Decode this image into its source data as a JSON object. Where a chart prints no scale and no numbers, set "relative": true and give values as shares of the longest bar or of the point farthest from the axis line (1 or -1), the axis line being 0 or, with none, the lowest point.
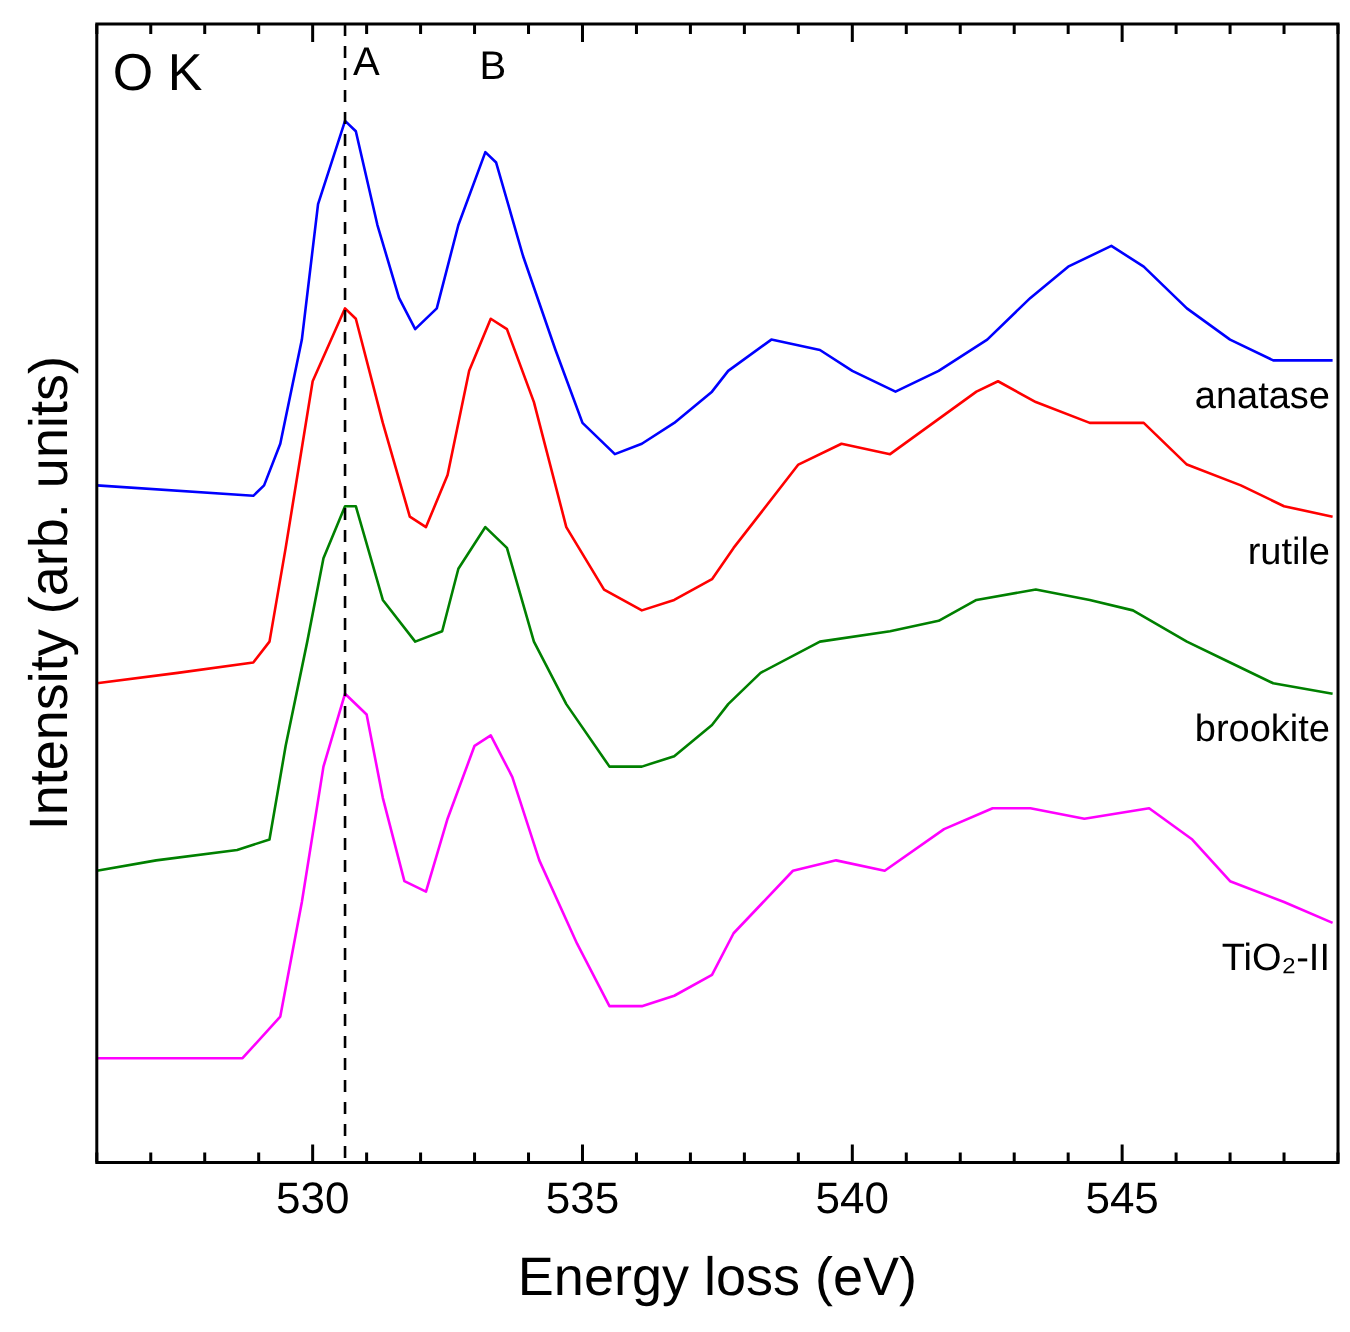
{
  "chart_data": {
    "type": "line",
    "relative": true,
    "xlabel": "Energy loss (eV)",
    "ylabel": "Intensity (arb. units)",
    "xlim": [
      526,
      549
    ],
    "xticks": [
      {
        "value": 526,
        "label": null
      },
      {
        "value": 527,
        "label": null
      },
      {
        "value": 528,
        "label": null
      },
      {
        "value": 529,
        "label": null
      },
      530,
      {
        "value": 531,
        "label": null
      },
      {
        "value": 532,
        "label": null
      },
      {
        "value": 533,
        "label": null
      },
      {
        "value": 534,
        "label": null
      },
      535,
      {
        "value": 536,
        "label": null
      },
      {
        "value": 537,
        "label": null
      },
      {
        "value": 538,
        "label": null
      },
      {
        "value": 539,
        "label": null
      },
      540,
      {
        "value": 541,
        "label": null
      },
      {
        "value": 542,
        "label": null
      },
      {
        "value": 543,
        "label": null
      },
      {
        "value": 544,
        "label": null
      },
      545,
      {
        "value": 546,
        "label": null
      },
      {
        "value": 547,
        "label": null
      },
      {
        "value": 548,
        "label": null
      },
      {
        "value": 549,
        "label": null
      }
    ],
    "grid": false,
    "legend": false,
    "marker": "none",
    "line_style": "solid",
    "annotations": [
      "O K",
      "B"
    ],
    "ref_lines": [
      {
        "axis": "x",
        "value": 530.6,
        "label": "A",
        "line_style": "dashed",
        "color": "#000000"
      }
    ],
    "series": [
      {
        "name": "anatase",
        "color": "#0000ff",
        "x": [
          526.0,
          528.9,
          529.1,
          529.4,
          529.8,
          530.1,
          530.6,
          530.8,
          531.2,
          531.6,
          531.9,
          532.3,
          532.7,
          533.2,
          533.4,
          533.9,
          534.5,
          535.0,
          535.6,
          536.1,
          536.7,
          537.4,
          537.7,
          538.5,
          539.4,
          540.0,
          540.8,
          541.6,
          542.5,
          543.3,
          544.0,
          544.8,
          545.4,
          546.2,
          547.0,
          547.8,
          548.4,
          548.9
        ],
        "values": [
          0.65,
          0.64,
          0.65,
          0.69,
          0.79,
          0.92,
          1.0,
          0.99,
          0.9,
          0.83,
          0.8,
          0.82,
          0.9,
          0.97,
          0.96,
          0.87,
          0.78,
          0.71,
          0.68,
          0.69,
          0.71,
          0.74,
          0.76,
          0.79,
          0.78,
          0.76,
          0.74,
          0.76,
          0.79,
          0.83,
          0.86,
          0.88,
          0.86,
          0.82,
          0.79,
          0.77,
          0.77,
          0.77
        ]
      },
      {
        "name": "rutile",
        "color": "#ff0000",
        "x": [
          526.0,
          527.5,
          528.9,
          529.2,
          529.5,
          530.0,
          530.6,
          530.8,
          531.3,
          531.8,
          532.1,
          532.5,
          532.9,
          533.3,
          533.6,
          534.1,
          534.7,
          535.4,
          536.1,
          536.7,
          537.4,
          537.8,
          539.0,
          539.8,
          540.7,
          541.5,
          542.3,
          542.7,
          543.4,
          544.4,
          545.4,
          546.2,
          547.2,
          548.0,
          548.9
        ],
        "values": [
          0.46,
          0.47,
          0.48,
          0.5,
          0.59,
          0.75,
          0.82,
          0.81,
          0.71,
          0.62,
          0.61,
          0.66,
          0.76,
          0.81,
          0.8,
          0.73,
          0.61,
          0.55,
          0.53,
          0.54,
          0.56,
          0.59,
          0.67,
          0.69,
          0.68,
          0.71,
          0.74,
          0.75,
          0.73,
          0.71,
          0.71,
          0.67,
          0.65,
          0.63,
          0.62
        ]
      },
      {
        "name": "brookite",
        "color": "#008000",
        "x": [
          526.0,
          527.1,
          528.6,
          529.2,
          529.5,
          529.9,
          530.2,
          530.6,
          530.8,
          531.3,
          531.9,
          532.4,
          532.7,
          533.2,
          533.6,
          534.1,
          534.7,
          535.5,
          536.1,
          536.7,
          537.4,
          537.7,
          538.3,
          539.4,
          540.7,
          541.6,
          542.3,
          543.4,
          544.4,
          545.2,
          546.2,
          547.0,
          547.8,
          548.9
        ],
        "values": [
          0.28,
          0.29,
          0.3,
          0.31,
          0.4,
          0.5,
          0.58,
          0.63,
          0.63,
          0.54,
          0.5,
          0.51,
          0.57,
          0.61,
          0.59,
          0.5,
          0.44,
          0.38,
          0.38,
          0.39,
          0.42,
          0.44,
          0.47,
          0.5,
          0.51,
          0.52,
          0.54,
          0.55,
          0.54,
          0.53,
          0.5,
          0.48,
          0.46,
          0.45
        ]
      },
      {
        "name": "TiO₂-II",
        "color": "#ff00ff",
        "x": [
          526.0,
          526.8,
          528.7,
          529.4,
          529.8,
          530.2,
          530.6,
          531.0,
          531.3,
          531.7,
          532.1,
          532.5,
          533.0,
          533.3,
          533.7,
          534.2,
          534.9,
          535.5,
          536.1,
          536.7,
          537.4,
          537.8,
          538.9,
          539.7,
          540.6,
          541.7,
          542.6,
          543.3,
          544.3,
          545.5,
          546.3,
          547.0,
          548.0,
          548.9
        ],
        "values": [
          0.1,
          0.1,
          0.1,
          0.14,
          0.25,
          0.38,
          0.45,
          0.43,
          0.35,
          0.27,
          0.26,
          0.33,
          0.4,
          0.41,
          0.37,
          0.29,
          0.21,
          0.15,
          0.15,
          0.16,
          0.18,
          0.22,
          0.28,
          0.29,
          0.28,
          0.32,
          0.34,
          0.34,
          0.33,
          0.34,
          0.31,
          0.27,
          0.25,
          0.23
        ]
      }
    ]
  }
}
